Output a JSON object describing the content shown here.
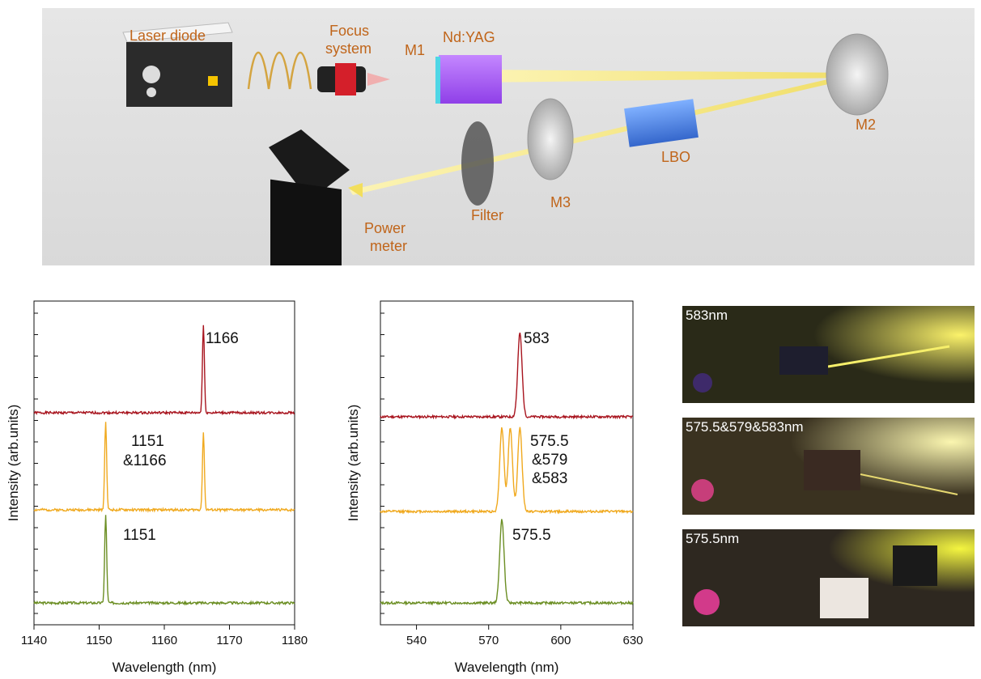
{
  "setup": {
    "labels": {
      "laser_diode": "Laser diode",
      "focus_line1": "Focus",
      "focus_line2": "system",
      "m1": "M1",
      "ndyag": "Nd:YAG",
      "m2": "M2",
      "m3": "M3",
      "lbo": "LBO",
      "filter": "Filter",
      "power_line1": "Power",
      "power_line2": "meter"
    },
    "colors": {
      "label": "#c0651a",
      "beam": "#f5e46a",
      "crystal": "#a45cf0",
      "lbo": "#4a86e8"
    }
  },
  "chart_data": [
    {
      "type": "line",
      "xlabel": "Wavelength (nm)",
      "ylabel": "Intensity (arb.units)",
      "xlim": [
        1140,
        1180
      ],
      "xticks": [
        "1140",
        "1150",
        "1160",
        "1170",
        "1180"
      ],
      "series": [
        {
          "color": "#a8141e",
          "offset": 2,
          "peaks": [
            [
              1166,
              0.9
            ]
          ]
        },
        {
          "color": "#f0a91e",
          "offset": 1,
          "peaks": [
            [
              1151,
              0.9
            ],
            [
              1166,
              0.8
            ]
          ]
        },
        {
          "color": "#6b8e23",
          "offset": 0,
          "peaks": [
            [
              1151,
              0.9
            ]
          ]
        }
      ],
      "annotations": [
        {
          "text": "1166",
          "series": 0
        },
        {
          "text": "1151",
          "series": 1
        },
        {
          "text": "&1166",
          "series": 1
        },
        {
          "text": "1151",
          "series": 2
        }
      ]
    },
    {
      "type": "line",
      "xlabel": "Wavelength (nm)",
      "ylabel": "Intensity (arb.units)",
      "xlim": [
        525,
        630
      ],
      "xticks": [
        "540",
        "570",
        "600",
        "630"
      ],
      "series": [
        {
          "color": "#a8141e",
          "offset": 2,
          "peaks": [
            [
              583,
              0.9
            ]
          ]
        },
        {
          "color": "#f0a91e",
          "offset": 1,
          "peaks": [
            [
              575.5,
              0.9
            ],
            [
              579,
              0.9
            ],
            [
              583,
              0.9
            ]
          ]
        },
        {
          "color": "#6b8e23",
          "offset": 0,
          "peaks": [
            [
              575.5,
              0.9
            ]
          ]
        }
      ],
      "annotations": [
        {
          "text": "583",
          "series": 0
        },
        {
          "text": "575.5",
          "series": 1
        },
        {
          "text": "&579",
          "series": 1
        },
        {
          "text": "&583",
          "series": 1
        },
        {
          "text": "575.5",
          "series": 2
        }
      ]
    }
  ],
  "photos": [
    {
      "label": "583nm"
    },
    {
      "label": "575.5&579&583nm"
    },
    {
      "label": "575.5nm"
    }
  ]
}
